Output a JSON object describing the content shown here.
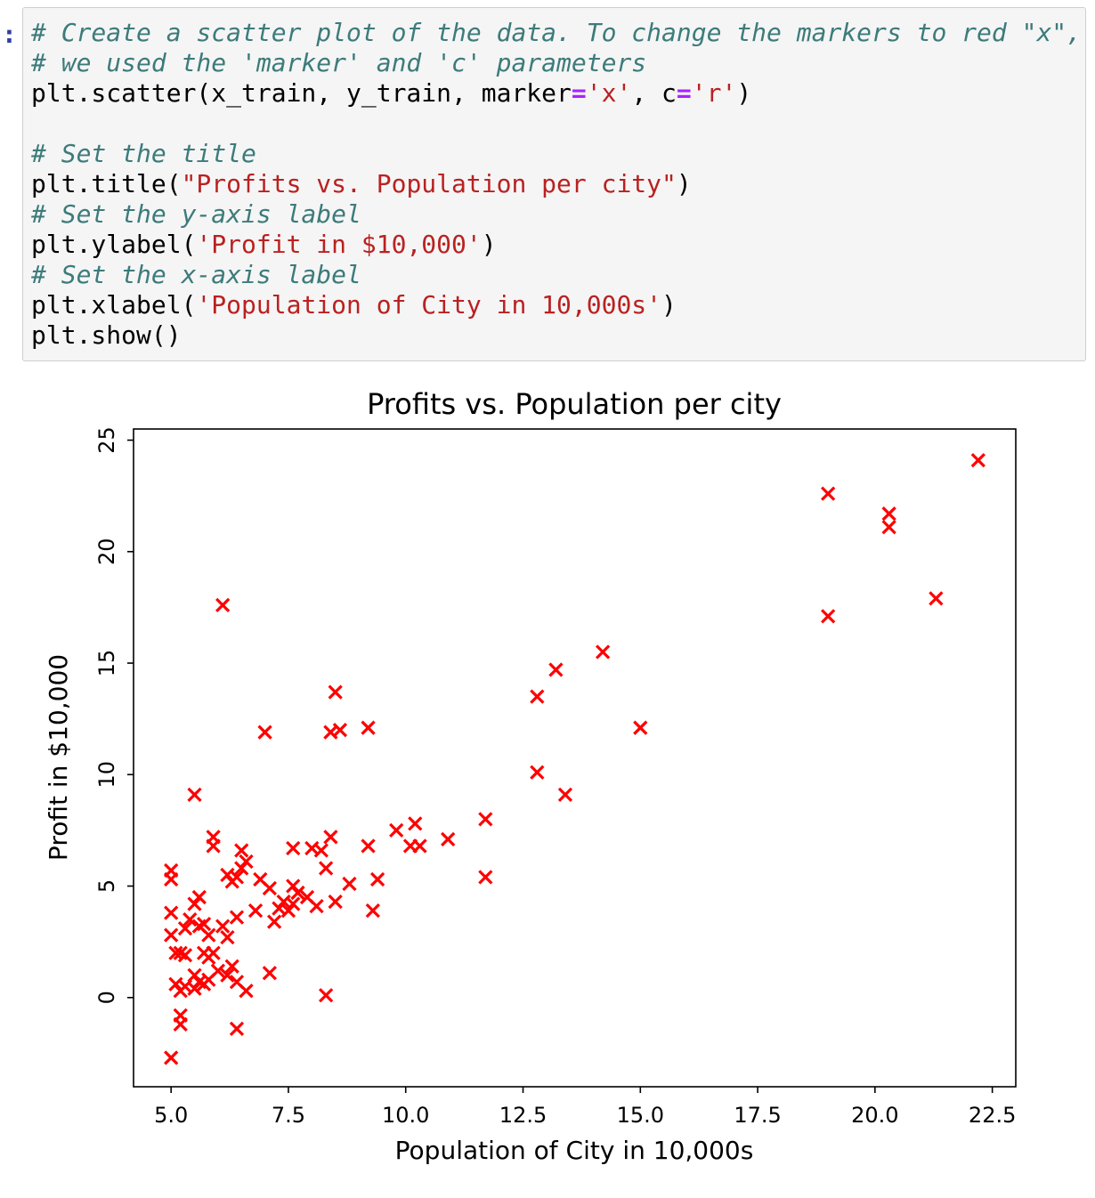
{
  "prompt": ":",
  "code_cell": {
    "lines": [
      [
        {
          "t": "cm",
          "v": "# Create a scatter plot of the data. To change the markers to red \"x\","
        }
      ],
      [
        {
          "t": "cm",
          "v": "# we used the 'marker' and 'c' parameters"
        }
      ],
      [
        {
          "t": "tx",
          "v": "plt.scatter(x_train, y_train, marker"
        },
        {
          "t": "op",
          "v": "="
        },
        {
          "t": "st",
          "v": "'x'"
        },
        {
          "t": "tx",
          "v": ", c"
        },
        {
          "t": "op",
          "v": "="
        },
        {
          "t": "st",
          "v": "'r'"
        },
        {
          "t": "tx",
          "v": ")"
        }
      ],
      [],
      [
        {
          "t": "cm",
          "v": "# Set the title"
        }
      ],
      [
        {
          "t": "tx",
          "v": "plt.title("
        },
        {
          "t": "st",
          "v": "\"Profits vs. Population per city\""
        },
        {
          "t": "tx",
          "v": ")"
        }
      ],
      [
        {
          "t": "cm",
          "v": "# Set the y-axis label"
        }
      ],
      [
        {
          "t": "tx",
          "v": "plt.ylabel("
        },
        {
          "t": "st",
          "v": "'Profit in $10,000'"
        },
        {
          "t": "tx",
          "v": ")"
        }
      ],
      [
        {
          "t": "cm",
          "v": "# Set the x-axis label"
        }
      ],
      [
        {
          "t": "tx",
          "v": "plt.xlabel("
        },
        {
          "t": "st",
          "v": "'Population of City in 10,000s'"
        },
        {
          "t": "tx",
          "v": ")"
        }
      ],
      [
        {
          "t": "tx",
          "v": "plt.show()"
        }
      ]
    ]
  },
  "chart_data": {
    "type": "scatter",
    "title": "Profits vs. Population per city",
    "xlabel": "Population of City in 10,000s",
    "ylabel": "Profit in $10,000",
    "xlim": [
      4.2,
      23.0
    ],
    "ylim": [
      -4.0,
      25.5
    ],
    "xticks": [
      5.0,
      7.5,
      10.0,
      12.5,
      15.0,
      17.5,
      20.0,
      22.5
    ],
    "xtick_labels": [
      "5.0",
      "7.5",
      "10.0",
      "12.5",
      "15.0",
      "17.5",
      "20.0",
      "22.5"
    ],
    "yticks": [
      0,
      5,
      10,
      15,
      20,
      25
    ],
    "ytick_labels": [
      "0",
      "5",
      "10",
      "15",
      "20",
      "25"
    ],
    "marker": "x",
    "color": "#ff0000",
    "grid": false,
    "points": [
      [
        22.2,
        24.1
      ],
      [
        19.0,
        22.6
      ],
      [
        20.3,
        21.7
      ],
      [
        20.3,
        21.1
      ],
      [
        21.3,
        17.9
      ],
      [
        19.0,
        17.1
      ],
      [
        6.1,
        17.6
      ],
      [
        14.2,
        15.5
      ],
      [
        13.2,
        14.7
      ],
      [
        12.8,
        13.5
      ],
      [
        15.0,
        12.1
      ],
      [
        12.8,
        10.1
      ],
      [
        13.4,
        9.1
      ],
      [
        8.5,
        13.7
      ],
      [
        9.2,
        12.1
      ],
      [
        8.4,
        11.9
      ],
      [
        8.6,
        12.0
      ],
      [
        7.0,
        11.9
      ],
      [
        5.5,
        9.1
      ],
      [
        11.7,
        8.0
      ],
      [
        11.7,
        5.4
      ],
      [
        10.9,
        7.1
      ],
      [
        10.2,
        7.8
      ],
      [
        9.8,
        7.5
      ],
      [
        10.1,
        6.8
      ],
      [
        10.3,
        6.8
      ],
      [
        9.2,
        6.8
      ],
      [
        9.4,
        5.3
      ],
      [
        9.3,
        3.9
      ],
      [
        8.8,
        5.1
      ],
      [
        8.4,
        7.2
      ],
      [
        8.3,
        5.8
      ],
      [
        8.2,
        6.6
      ],
      [
        8.0,
        6.7
      ],
      [
        7.6,
        6.7
      ],
      [
        8.5,
        4.3
      ],
      [
        8.1,
        4.1
      ],
      [
        7.9,
        4.5
      ],
      [
        7.7,
        4.7
      ],
      [
        7.6,
        5.0
      ],
      [
        7.6,
        4.2
      ],
      [
        7.4,
        4.3
      ],
      [
        7.3,
        4.0
      ],
      [
        7.5,
        3.9
      ],
      [
        7.2,
        3.4
      ],
      [
        7.1,
        4.9
      ],
      [
        6.9,
        5.3
      ],
      [
        6.8,
        3.9
      ],
      [
        6.6,
        6.1
      ],
      [
        6.5,
        6.6
      ],
      [
        6.5,
        5.8
      ],
      [
        6.4,
        5.4
      ],
      [
        6.3,
        5.2
      ],
      [
        6.2,
        5.5
      ],
      [
        6.4,
        3.6
      ],
      [
        6.2,
        2.7
      ],
      [
        6.1,
        3.2
      ],
      [
        6.3,
        1.4
      ],
      [
        6.2,
        1.0
      ],
      [
        6.4,
        0.7
      ],
      [
        6.6,
        0.3
      ],
      [
        6.4,
        -1.4
      ],
      [
        7.1,
        1.1
      ],
      [
        8.3,
        0.1
      ],
      [
        5.9,
        7.2
      ],
      [
        5.9,
        6.8
      ],
      [
        5.0,
        5.7
      ],
      [
        5.0,
        5.3
      ],
      [
        5.0,
        3.8
      ],
      [
        5.0,
        2.8
      ],
      [
        5.1,
        2.0
      ],
      [
        5.2,
        2.0
      ],
      [
        5.3,
        1.9
      ],
      [
        5.1,
        0.6
      ],
      [
        5.2,
        0.3
      ],
      [
        5.3,
        0.5
      ],
      [
        5.2,
        -0.8
      ],
      [
        5.2,
        -1.2
      ],
      [
        5.0,
        -2.7
      ],
      [
        5.5,
        4.2
      ],
      [
        5.6,
        4.5
      ],
      [
        5.4,
        3.5
      ],
      [
        5.6,
        3.2
      ],
      [
        5.7,
        3.3
      ],
      [
        5.8,
        2.8
      ],
      [
        5.7,
        2.0
      ],
      [
        5.8,
        1.8
      ],
      [
        5.9,
        2.0
      ],
      [
        5.5,
        1.0
      ],
      [
        5.6,
        0.7
      ],
      [
        5.5,
        0.4
      ],
      [
        5.7,
        0.6
      ],
      [
        5.8,
        0.8
      ],
      [
        6.0,
        1.2
      ],
      [
        5.3,
        3.1
      ]
    ]
  }
}
